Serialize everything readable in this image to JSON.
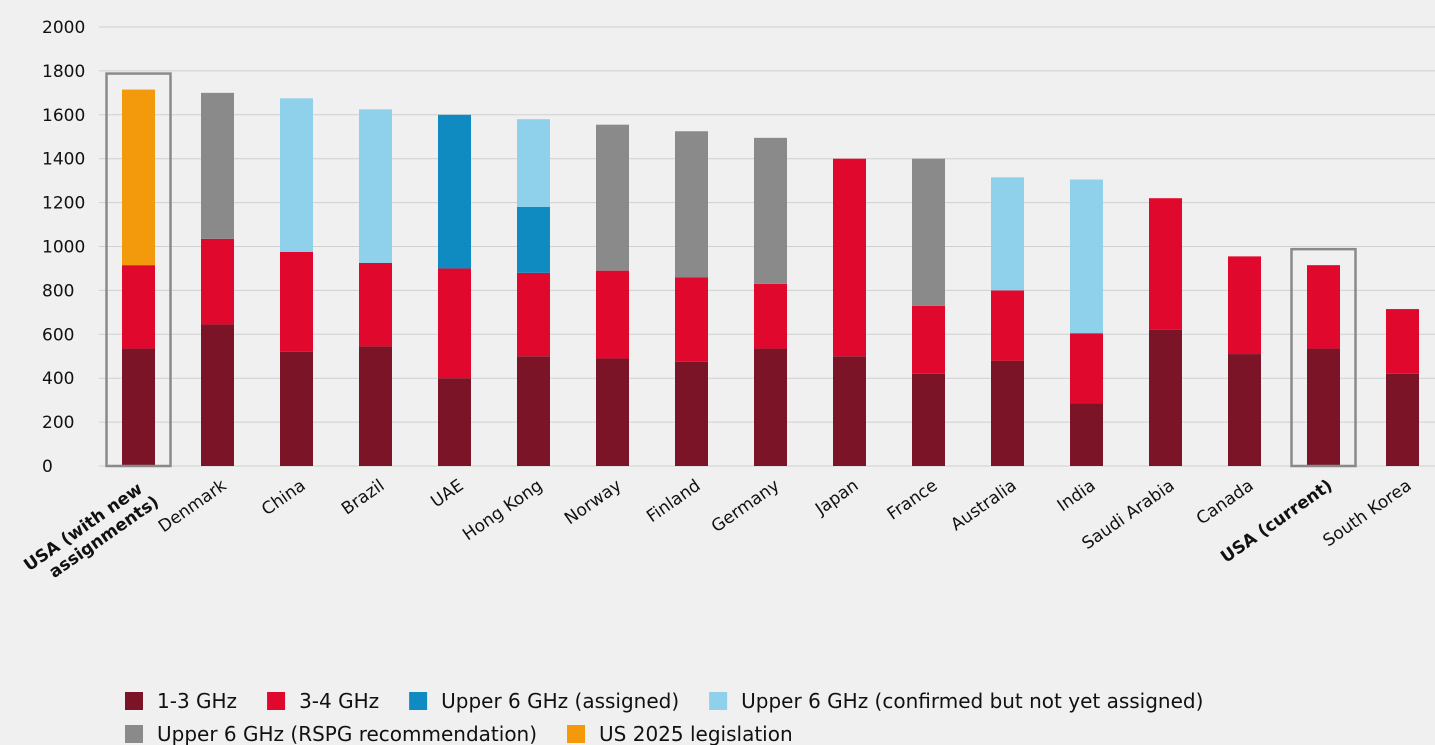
{
  "chart_data": {
    "type": "stacked_bar",
    "categories": [
      "USA (with new assignments)",
      "Denmark",
      "China",
      "Brazil",
      "UAE",
      "Hong Kong",
      "Norway",
      "Finland",
      "Germany",
      "Japan",
      "France",
      "Australia",
      "India",
      "Saudi Arabia",
      "Canada",
      "USA (current)",
      "South Korea"
    ],
    "series": [
      {
        "name": "1-3 GHz",
        "color": "#7a1426",
        "values": [
          535,
          645,
          520,
          545,
          400,
          500,
          490,
          475,
          535,
          500,
          420,
          480,
          285,
          620,
          510,
          535,
          420
        ]
      },
      {
        "name": "3-4 GHz",
        "color": "#e0092d",
        "values": [
          380,
          390,
          455,
          380,
          500,
          380,
          400,
          385,
          295,
          900,
          310,
          320,
          320,
          600,
          445,
          380,
          295
        ]
      },
      {
        "name": "Upper 6 GHz (assigned)",
        "color": "#0f8bc1",
        "values": [
          null,
          null,
          null,
          null,
          700,
          300,
          null,
          null,
          null,
          null,
          null,
          null,
          null,
          null,
          null,
          null,
          null
        ]
      },
      {
        "name": "Upper 6 GHz (confirmed but not yet assigned)",
        "color": "#8fd0ea",
        "values": [
          null,
          null,
          700,
          700,
          null,
          400,
          null,
          null,
          null,
          null,
          null,
          515,
          700,
          null,
          null,
          null,
          null
        ]
      },
      {
        "name": "Upper 6 GHz (RSPG recommendation)",
        "color": "#8a8a8a",
        "values": [
          null,
          665,
          null,
          null,
          null,
          null,
          665,
          665,
          665,
          null,
          670,
          null,
          null,
          null,
          null,
          null,
          null
        ]
      },
      {
        "name": "US 2025 legislation",
        "color": "#f39a0c",
        "values": [
          800,
          null,
          null,
          null,
          null,
          null,
          null,
          null,
          null,
          null,
          null,
          null,
          null,
          null,
          null,
          null,
          null
        ]
      }
    ],
    "ylim": [
      0,
      2000
    ],
    "yticks": [
      0,
      200,
      400,
      600,
      800,
      1000,
      1200,
      1400,
      1600,
      1800,
      2000
    ],
    "grid": true
  }
}
